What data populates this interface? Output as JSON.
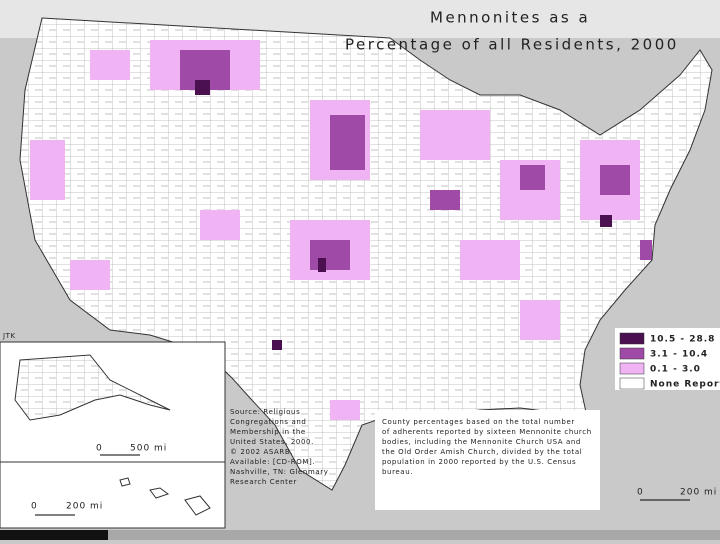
{
  "title": {
    "line1": "Mennonites as a",
    "line2": "Percentage of all Residents, 2000"
  },
  "credit": "JTK",
  "legend": {
    "items": [
      {
        "label": "10.5 - 28.8",
        "color": "#4a1050"
      },
      {
        "label": "3.1 - 10.4",
        "color": "#a04aa8"
      },
      {
        "label": "0.1 - 3.0",
        "color": "#f0b4f4"
      },
      {
        "label": "None Report",
        "color": "#ffffff"
      }
    ]
  },
  "scale_bars": {
    "alaska": {
      "start": "0",
      "end": "500 mi"
    },
    "hawaii": {
      "start": "0",
      "end": "200 mi"
    },
    "mainland": {
      "start": "0",
      "end": "200 mi"
    }
  },
  "source": [
    "Source: Religious",
    "Congregations and",
    "Membership in the",
    "United States, 2000.",
    "© 2002 ASARB.",
    "Available: [CD-ROM].",
    "Nashville, TN: Glenmary",
    "Research Center"
  ],
  "note": [
    "County percentages based on the total number",
    "of adherents reported by sixteen Mennonite church",
    "bodies, including the Mennonite Church USA and",
    "the Old Order Amish Church, divided by the total",
    "population in 2000 reported by the U.S. Census",
    "bureau."
  ]
}
